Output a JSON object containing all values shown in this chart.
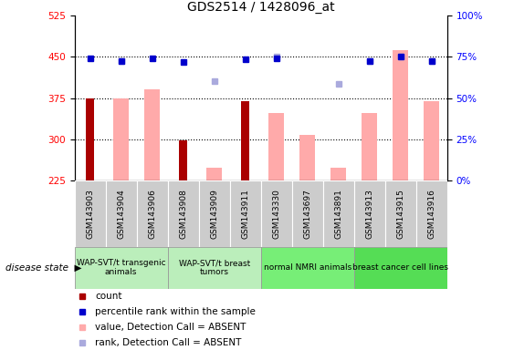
{
  "title": "GDS2514 / 1428096_at",
  "samples": [
    "GSM143903",
    "GSM143904",
    "GSM143906",
    "GSM143908",
    "GSM143909",
    "GSM143911",
    "GSM143330",
    "GSM143697",
    "GSM143891",
    "GSM143913",
    "GSM143915",
    "GSM143916"
  ],
  "count_values": [
    375,
    null,
    null,
    297,
    null,
    370,
    null,
    null,
    null,
    null,
    null,
    null
  ],
  "pink_bar_values": [
    null,
    375,
    390,
    null,
    248,
    null,
    348,
    308,
    248,
    348,
    462,
    370
  ],
  "blue_square_values": [
    447,
    443,
    447,
    440,
    null,
    445,
    448,
    null,
    null,
    443,
    450,
    443
  ],
  "lightblue_square_values": [
    null,
    443,
    null,
    null,
    405,
    null,
    450,
    null,
    400,
    443,
    450,
    443
  ],
  "ylim": [
    225,
    525
  ],
  "y_ticks": [
    225,
    300,
    375,
    450,
    525
  ],
  "right_y_ticks": [
    0,
    25,
    50,
    75,
    100
  ],
  "right_ylim": [
    0,
    100
  ],
  "dotted_lines": [
    300,
    375,
    450
  ],
  "groups": [
    {
      "span": [
        0,
        2
      ],
      "label": "WAP-SVT/t transgenic\nanimals",
      "color": "#bbeebb"
    },
    {
      "span": [
        3,
        5
      ],
      "label": "WAP-SVT/t breast\ntumors",
      "color": "#bbeebb"
    },
    {
      "span": [
        6,
        8
      ],
      "label": "normal NMRI animals",
      "color": "#77ee77"
    },
    {
      "span": [
        9,
        11
      ],
      "label": "breast cancer cell lines",
      "color": "#55dd55"
    }
  ],
  "bar_color_dark_red": "#aa0000",
  "bar_color_pink": "#ffaaaa",
  "blue_sq_color": "#0000cc",
  "lightblue_sq_color": "#aaaadd",
  "tick_bg_color": "#cccccc",
  "legend_items": [
    {
      "color": "#aa0000",
      "label": "count"
    },
    {
      "color": "#0000cc",
      "label": "percentile rank within the sample"
    },
    {
      "color": "#ffaaaa",
      "label": "value, Detection Call = ABSENT"
    },
    {
      "color": "#aaaadd",
      "label": "rank, Detection Call = ABSENT"
    }
  ]
}
